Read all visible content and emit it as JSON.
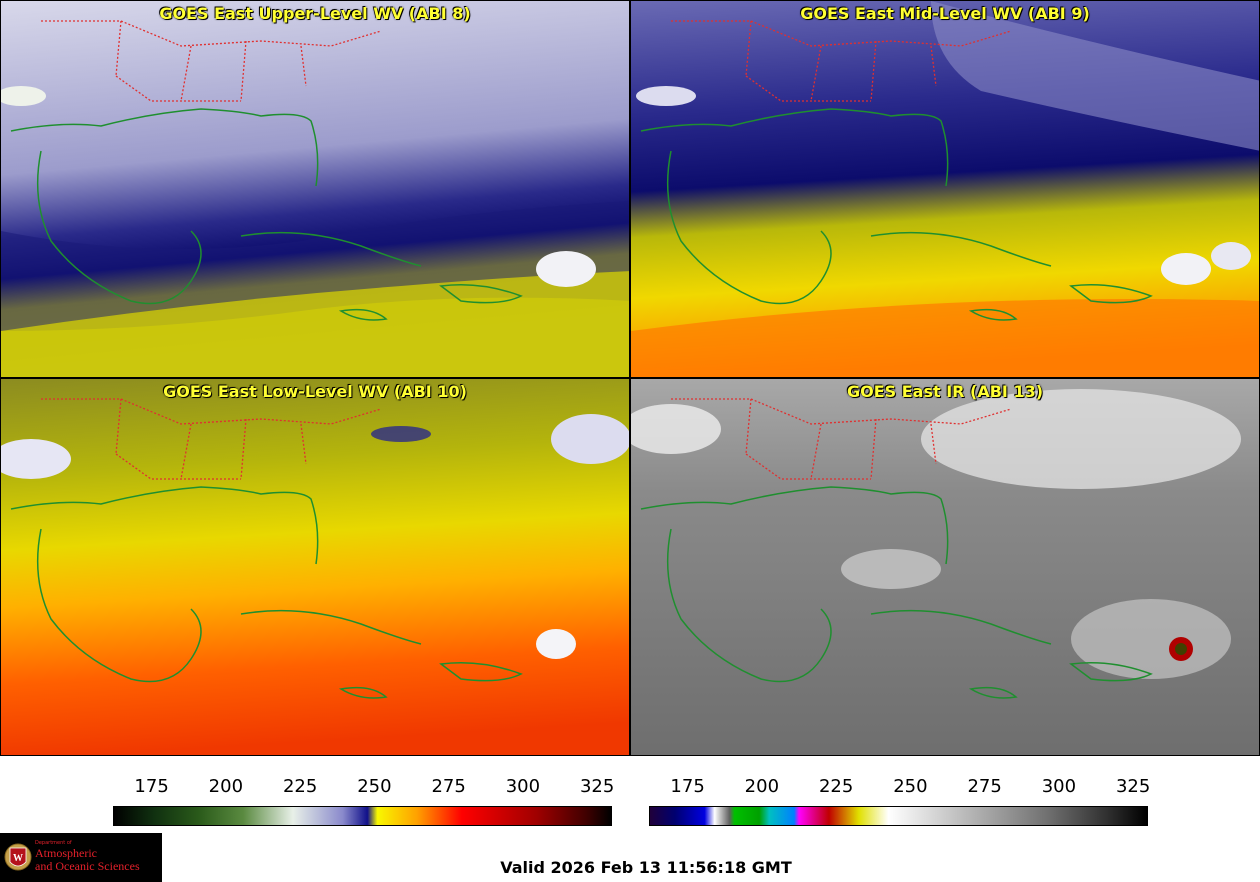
{
  "panels": [
    {
      "title": "GOES East Upper-Level WV (ABI 8)",
      "channel": "ABI 8"
    },
    {
      "title": "GOES East Mid-Level WV (ABI 9)",
      "channel": "ABI 9"
    },
    {
      "title": "GOES East Low-Level WV (ABI 10)",
      "channel": "ABI 10"
    },
    {
      "title": "GOES East IR (ABI 13)",
      "channel": "ABI 13"
    }
  ],
  "colorbars": {
    "wv": {
      "ticks": [
        "175",
        "200",
        "225",
        "250",
        "275",
        "300",
        "325"
      ],
      "min": 162,
      "max": 330
    },
    "ir": {
      "ticks": [
        "175",
        "200",
        "225",
        "250",
        "275",
        "300",
        "325"
      ],
      "min": 162,
      "max": 330
    }
  },
  "logo": {
    "department": "Department of",
    "line1": "Atmospheric",
    "line2": "and Oceanic Sciences"
  },
  "valid_time": "Valid 2026 Feb 13 11:56:18 GMT",
  "colors": {
    "title_text": "#ffff33",
    "state_borders": "#e03030",
    "coastlines": "#1f8f2f"
  }
}
